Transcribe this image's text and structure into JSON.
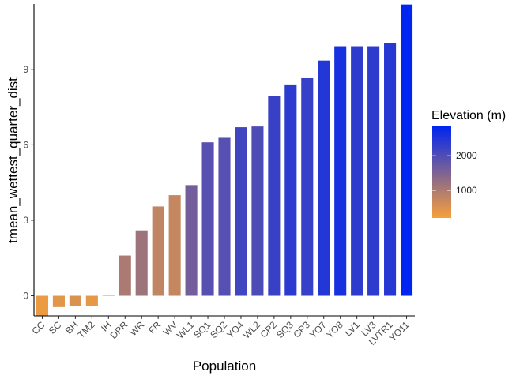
{
  "chart_data": {
    "type": "bar",
    "xlabel": "Population",
    "ylabel": "tmean_wettest_quarter_dist",
    "ylim": [
      -0.8,
      11.6
    ],
    "yticks": [
      0,
      3,
      6,
      9
    ],
    "grid": false,
    "legend": {
      "title": "Elevation (m)",
      "placement": "right",
      "range": [
        200,
        2850
      ],
      "breaks": [
        1000,
        2000
      ],
      "break_labels": [
        "1000",
        "2000"
      ],
      "low_color": "#F7A03A",
      "high_color": "#0025F0"
    },
    "categories": [
      "CC",
      "SC",
      "BH",
      "TM2",
      "IH",
      "DPR",
      "WR",
      "FR",
      "WV",
      "WL1",
      "SQ1",
      "SQ2",
      "YO4",
      "WL2",
      "CP2",
      "SQ3",
      "CP3",
      "YO7",
      "YO8",
      "LV1",
      "LV3",
      "LVTR1",
      "YO11"
    ],
    "values": [
      -0.8,
      -0.45,
      -0.42,
      -0.4,
      0.03,
      1.6,
      2.6,
      3.55,
      4.0,
      4.4,
      6.1,
      6.28,
      6.7,
      6.73,
      7.93,
      8.37,
      8.65,
      9.35,
      9.92,
      9.92,
      9.92,
      10.03,
      11.58
    ],
    "elevation": [
      313,
      422,
      511,
      379,
      454,
      1019,
      1158,
      787,
      748,
      1614,
      1921,
      1934,
      2158,
      2020,
      2244,
      2373,
      2266,
      2470,
      2590,
      2353,
      2353,
      2442,
      2850
    ]
  }
}
